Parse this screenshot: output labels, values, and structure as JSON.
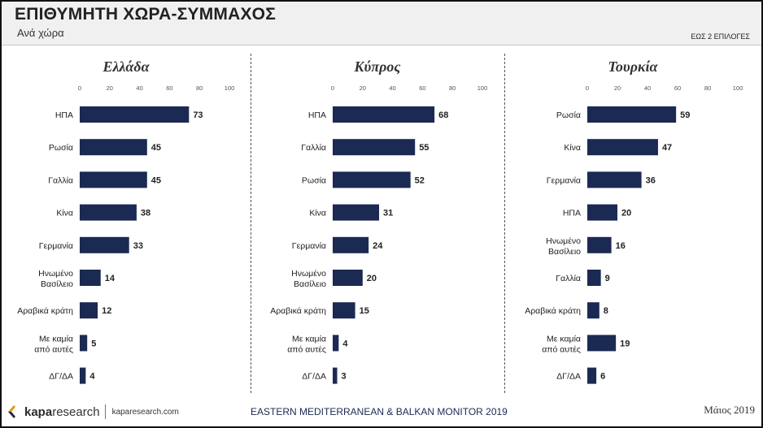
{
  "header": {
    "title": "ΕΠΙΘΥΜΗΤΗ ΧΩΡΑ-ΣΥΜΜΑΧΟΣ",
    "subtitle": "Ανά χώρα",
    "choice_note": "ΕΩΣ 2 ΕΠΙΛΟΓΕΣ"
  },
  "footer": {
    "logo_bold": "kapa",
    "logo_rest": "research",
    "url": "kaparesearch.com",
    "center": "EASTERN MEDITERRANEAN & BALKAN MONITOR 2019",
    "date": "Μάιος 2019"
  },
  "colors": {
    "bar": "#1b2a52",
    "logo_orange": "#f29200"
  },
  "chart_data": [
    {
      "type": "bar",
      "orientation": "horizontal",
      "title": "Ελλάδα",
      "xlim": [
        0,
        100
      ],
      "ticks": [
        0,
        20,
        40,
        60,
        80,
        100
      ],
      "categories": [
        "ΗΠΑ",
        "Ρωσία",
        "Γαλλία",
        "Κίνα",
        "Γερμανία",
        "Ηνωμένο Βασίλειο",
        "Αραβικά κράτη",
        "Με καμία από αυτές",
        "ΔΓ/ΔΑ"
      ],
      "values": [
        73,
        45,
        45,
        38,
        33,
        14,
        12,
        5,
        4
      ]
    },
    {
      "type": "bar",
      "orientation": "horizontal",
      "title": "Κύπρος",
      "xlim": [
        0,
        100
      ],
      "ticks": [
        0,
        20,
        40,
        60,
        80,
        100
      ],
      "categories": [
        "ΗΠΑ",
        "Γαλλία",
        "Ρωσία",
        "Κίνα",
        "Γερμανία",
        "Ηνωμένο Βασίλειο",
        "Αραβικά κράτη",
        "Με καμία από αυτές",
        "ΔΓ/ΔΑ"
      ],
      "values": [
        68,
        55,
        52,
        31,
        24,
        20,
        15,
        4,
        3
      ]
    },
    {
      "type": "bar",
      "orientation": "horizontal",
      "title": "Τουρκία",
      "xlim": [
        0,
        100
      ],
      "ticks": [
        0,
        20,
        40,
        60,
        80,
        100
      ],
      "categories": [
        "Ρωσία",
        "Κίνα",
        "Γερμανία",
        "ΗΠΑ",
        "Ηνωμένο Βασίλειο",
        "Γαλλία",
        "Αραβικά κράτη",
        "Με καμία από αυτές",
        "ΔΓ/ΔΑ"
      ],
      "values": [
        59,
        47,
        36,
        20,
        16,
        9,
        8,
        19,
        6
      ]
    }
  ]
}
